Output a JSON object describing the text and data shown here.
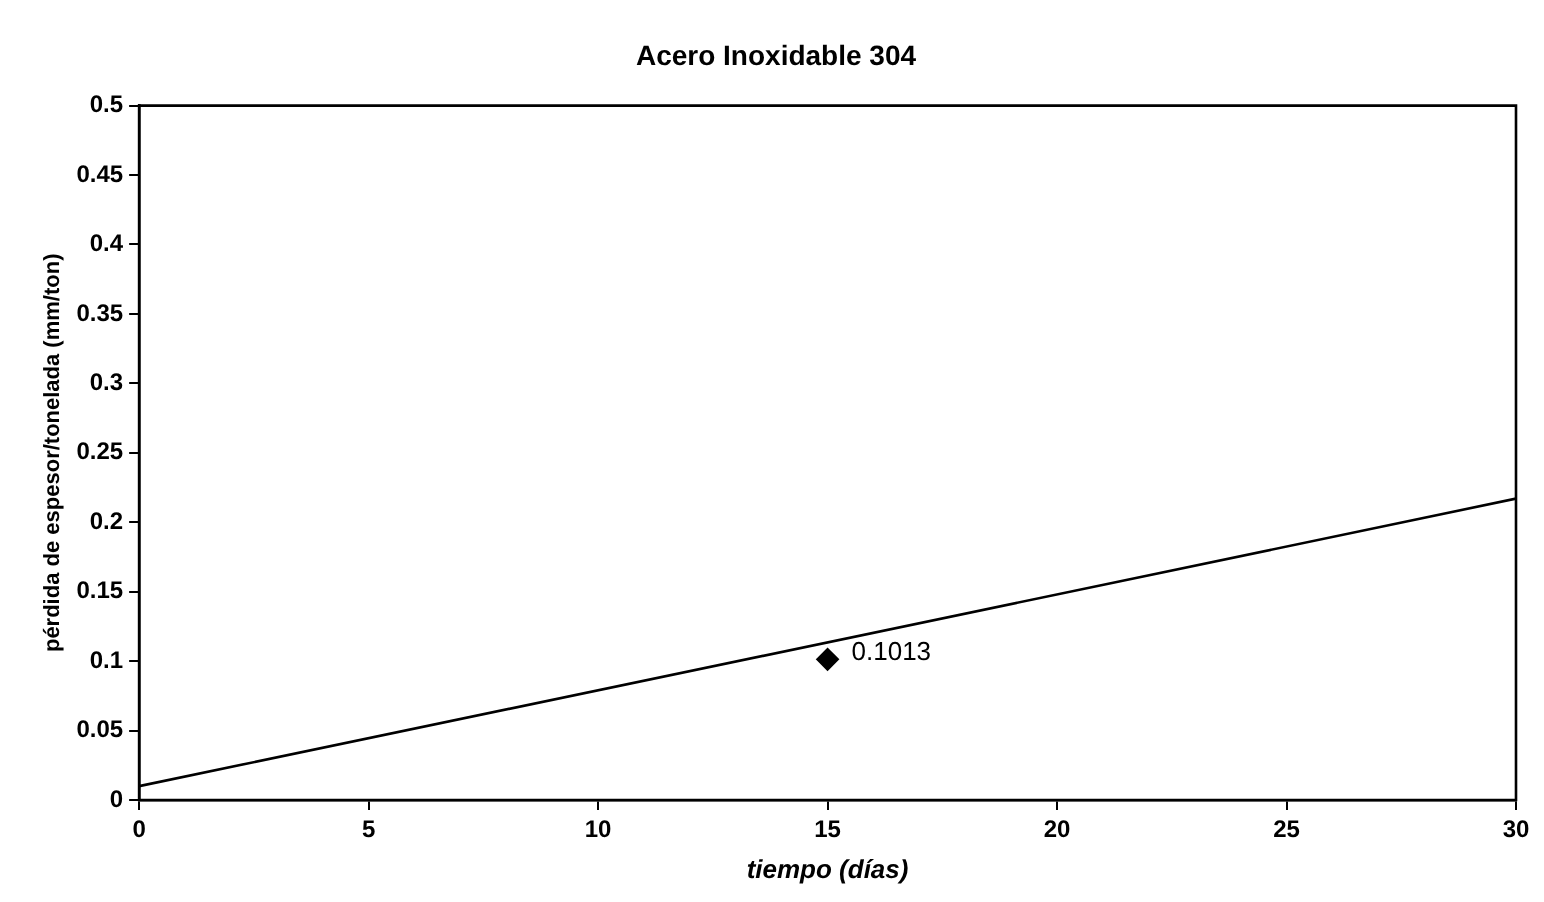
{
  "chart_data": {
    "type": "scatter",
    "title": "Acero Inoxidable 304",
    "xlabel": "tiempo (días)",
    "ylabel": "pérdida de espesor/tonelada (mm/ton)",
    "series": [
      {
        "color": "#000000",
        "x": [
          15
        ],
        "values": [
          0.1013
        ],
        "value_labels": [
          "0.1013"
        ],
        "marker": "diamond"
      },
      {
        "type": "line",
        "color": "#000000",
        "x": [
          0,
          30
        ],
        "values": [
          0.01,
          0.217
        ],
        "marker": "none"
      }
    ],
    "xlim": [
      0,
      30
    ],
    "xticks": [
      0,
      5,
      10,
      15,
      20,
      25,
      30
    ],
    "ylim": [
      0,
      0.5
    ],
    "yticks": [
      0,
      0.05,
      0.1,
      0.15,
      0.2,
      0.25,
      0.3,
      0.35,
      0.4,
      0.45,
      0.5
    ],
    "grid": false,
    "legend": false
  }
}
